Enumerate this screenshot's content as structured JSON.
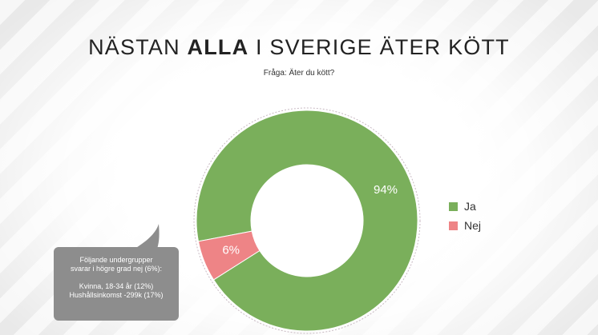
{
  "title": {
    "prefix": "NÄSTAN ",
    "bold": "ALLA",
    "suffix": " I SVERIGE ÄTER KÖTT"
  },
  "subtitle": "Fråga: Äter du kött?",
  "chart_data": {
    "type": "pie",
    "donut": true,
    "categories": [
      "Ja",
      "Nej"
    ],
    "values": [
      94,
      6
    ],
    "labels": [
      "94%",
      "6%"
    ],
    "colors": [
      "#7aaf5b",
      "#ee8486"
    ],
    "legend": "right"
  },
  "note": {
    "line1": "Följande undergrupper",
    "line2": "svarar i högre grad nej (6%):",
    "line3": "Kvinna, 18-34 år (12%)",
    "line4": "Hushållsinkomst -299k (17%)"
  }
}
